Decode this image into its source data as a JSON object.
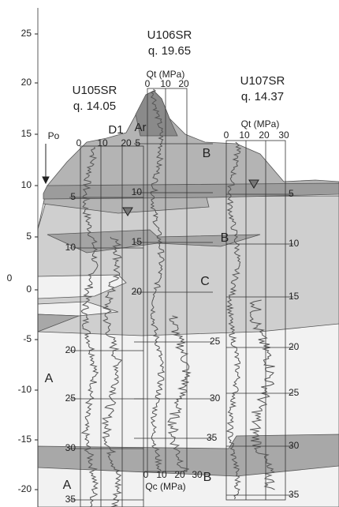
{
  "elevation_axis": {
    "ticks": [
      "25",
      "20",
      "15",
      "10",
      "5",
      "0",
      "-5",
      "-10",
      "-15",
      "-20"
    ],
    "zero_label": "0"
  },
  "boreholes": [
    {
      "name": "U105SR",
      "elevation": "q. 14.05",
      "scale_ticks": [
        "0",
        "10",
        "20"
      ],
      "depths": [
        "5",
        "10",
        "20",
        "25",
        "30",
        "35"
      ]
    },
    {
      "name": "U106SR",
      "elevation": "q. 19.65",
      "scale_title": "Qt (MPa)",
      "scale_ticks": [
        "0",
        "10",
        "20"
      ],
      "depths": [
        "5",
        "10",
        "15",
        "20",
        "25",
        "30",
        "35"
      ],
      "bottom_scale_title": "Qc (MPa)",
      "bottom_scale_ticks": [
        "0",
        "10",
        "20",
        "30"
      ]
    },
    {
      "name": "U107SR",
      "elevation": "q. 14.37",
      "scale_title": "Qt (MPa)",
      "scale_ticks": [
        "0",
        "10",
        "20",
        "30"
      ],
      "depths": [
        "5",
        "10",
        "15",
        "20",
        "25",
        "30",
        "35"
      ]
    }
  ],
  "labels": {
    "po": "Po",
    "d1": "D1",
    "ar": "Ar"
  },
  "layers": [
    "A",
    "A",
    "B",
    "B",
    "B",
    "C"
  ]
}
